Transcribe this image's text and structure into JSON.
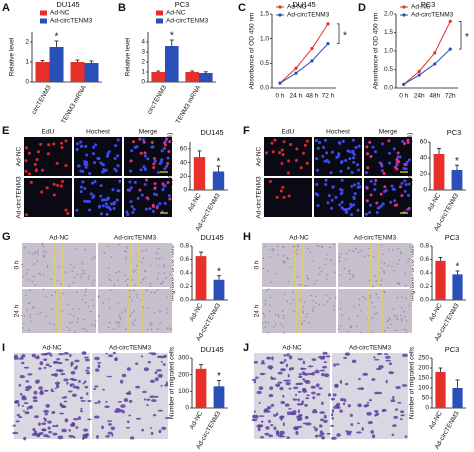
{
  "chart_data": [
    {
      "panel": "A",
      "type": "bar",
      "title": "DU145",
      "ylabel": "Relative level",
      "categories": [
        "circTENM3",
        "TENM3 mRNA"
      ],
      "series": [
        {
          "name": "Ad-NC",
          "color": "#e8302a",
          "values": [
            1,
            1
          ],
          "errors": [
            0.08,
            0.1
          ]
        },
        {
          "name": "Ad-circTENM3",
          "color": "#2a4fb8",
          "values": [
            1.75,
            0.95
          ],
          "errors": [
            0.3,
            0.1
          ]
        }
      ],
      "ylim": [
        0,
        2.5
      ],
      "yticks": [
        0,
        1,
        2
      ],
      "annotations": [
        "*"
      ]
    },
    {
      "panel": "B",
      "type": "bar",
      "title": "PC3",
      "ylabel": "Relative level",
      "categories": [
        "circTENM3",
        "TENM3 mRNA"
      ],
      "series": [
        {
          "name": "Ad-NC",
          "color": "#e8302a",
          "values": [
            1,
            1
          ],
          "errors": [
            0.1,
            0.1
          ]
        },
        {
          "name": "Ad-circTENM3",
          "color": "#2a4fb8",
          "values": [
            3.6,
            0.9
          ],
          "errors": [
            0.6,
            0.12
          ]
        }
      ],
      "ylim": [
        0,
        5
      ],
      "yticks": [
        0,
        1,
        2,
        3,
        4
      ],
      "annotations": [
        "*"
      ]
    },
    {
      "panel": "C",
      "type": "line",
      "title": "DU145",
      "ylabel": "Absorbance of OD 450 nm",
      "categories": [
        "0 h",
        "24 h",
        "48 h",
        "72 h"
      ],
      "series": [
        {
          "name": "Ad-NC",
          "color": "#e8302a",
          "values": [
            0.1,
            0.4,
            0.8,
            1.3
          ]
        },
        {
          "name": "Ad-circTENM3",
          "color": "#2a4fb8",
          "values": [
            0.1,
            0.3,
            0.55,
            0.9
          ]
        }
      ],
      "ylim": [
        0,
        1.5
      ],
      "yticks": [
        {
          "value": 0,
          "label": "0.0"
        },
        0.5,
        {
          "value": 1,
          "label": "1.0"
        },
        1.5
      ],
      "annotations": [
        "*"
      ]
    },
    {
      "panel": "D",
      "type": "line",
      "title": "PC3",
      "ylabel": "Absorbance of OD 450 nm",
      "categories": [
        "0 h",
        "24h",
        "48h",
        "72h"
      ],
      "series": [
        {
          "name": "Ad-NC",
          "color": "#e8302a",
          "values": [
            0.1,
            0.45,
            0.95,
            1.8
          ]
        },
        {
          "name": "Ad-circTENM3",
          "color": "#2a4fb8",
          "values": [
            0.1,
            0.35,
            0.65,
            1.05
          ]
        }
      ],
      "ylim": [
        0,
        2
      ],
      "yticks": [
        {
          "value": 0,
          "label": "0.0"
        },
        0.5,
        {
          "value": 1,
          "label": "1.0"
        },
        1.5,
        {
          "value": 2,
          "label": "2.0"
        }
      ],
      "annotations": [
        "*"
      ]
    },
    {
      "type": "bar",
      "title": "DU145",
      "ylabel": "EdU | positive cells (%)",
      "categories": [
        "Ad-NC",
        "Ad-circTENM3"
      ],
      "values": [
        48,
        27
      ],
      "errors": [
        9,
        8
      ],
      "colors": [
        "#e8302a",
        "#2a4fb8"
      ],
      "ylim": [
        0,
        70
      ],
      "yticks": [
        0,
        20,
        40,
        60
      ],
      "annotations": [
        "*"
      ]
    },
    {
      "type": "bar",
      "title": "PC3",
      "ylabel": "EdU | positive cells (%)",
      "categories": [
        "Ad-NC",
        "Ad-circTENM3"
      ],
      "values": [
        45,
        25
      ],
      "errors": [
        7,
        6
      ],
      "colors": [
        "#e8302a",
        "#2a4fb8"
      ],
      "ylim": [
        0,
        60
      ],
      "yticks": [
        0,
        20,
        40,
        60
      ],
      "annotations": [
        "*"
      ]
    },
    {
      "type": "bar",
      "title": "DU145",
      "ylabel": "Migration area ratio",
      "categories": [
        "Ad-NC",
        "Ad-circTENM3"
      ],
      "values": [
        0.65,
        0.3
      ],
      "errors": [
        0.06,
        0.06
      ],
      "colors": [
        "#e8302a",
        "#2a4fb8"
      ],
      "ylim": [
        0,
        0.8
      ],
      "yticks": [
        {
          "value": 0,
          "label": "0.0"
        },
        0.2,
        0.4,
        0.6,
        0.8
      ],
      "annotations": [
        "*"
      ]
    },
    {
      "type": "bar",
      "title": "PC3",
      "ylabel": "Migration area ratio",
      "categories": [
        "Ad-NC",
        "Ad-circTENM3"
      ],
      "values": [
        0.58,
        0.38
      ],
      "errors": [
        0.05,
        0.05
      ],
      "colors": [
        "#e8302a",
        "#2a4fb8"
      ],
      "ylim": [
        0,
        0.8
      ],
      "yticks": [
        {
          "value": 0,
          "label": "0.0"
        },
        0.2,
        0.4,
        0.6,
        0.8
      ],
      "annotations": [
        "*"
      ]
    },
    {
      "type": "bar",
      "title": "DU145",
      "ylabel": "Number of migrated cells",
      "categories": [
        "Ad-NC",
        "Ad-circTENM3"
      ],
      "values": [
        235,
        130
      ],
      "errors": [
        25,
        35
      ],
      "colors": [
        "#e8302a",
        "#2a4fb8"
      ],
      "ylim": [
        0,
        300
      ],
      "yticks": [
        0,
        100,
        200,
        300
      ],
      "annotations": [
        "*"
      ]
    },
    {
      "type": "bar",
      "title": "PC3",
      "ylabel": "Number of migrated cells",
      "categories": [
        "Ad-NC",
        "Ad-circTENM3"
      ],
      "values": [
        180,
        100
      ],
      "errors": [
        20,
        40
      ],
      "colors": [
        "#e8302a",
        "#2a4fb8"
      ],
      "ylim": [
        0,
        250
      ],
      "yticks": [
        0,
        50,
        100,
        150,
        200,
        250
      ]
    }
  ],
  "image_panels": [
    {
      "panel": "E",
      "columns": [
        "EdU",
        "Hochest",
        "Merge"
      ],
      "rows": [
        "Ad-NC",
        "Ad-circTENM3"
      ]
    },
    {
      "panel": "F",
      "columns": [
        "EdU",
        "Hochest",
        "Merge"
      ],
      "rows": [
        "Ad-NC",
        "Ad-circTENM3"
      ]
    },
    {
      "panel": "G",
      "columns": [
        "Ad-NC",
        "Ad-circTENM3"
      ],
      "rows": [
        "0 h",
        "24 h"
      ]
    },
    {
      "panel": "H",
      "columns": [
        "Ad-NC",
        "Ad-circTENM3"
      ],
      "rows": [
        "0 h",
        "24 h"
      ]
    },
    {
      "panel": "I",
      "columns": [
        "Ad-NC",
        "Ad-circTENM3"
      ]
    },
    {
      "panel": "J",
      "columns": [
        "Ad-NC",
        "Ad-circTENM3"
      ]
    }
  ]
}
